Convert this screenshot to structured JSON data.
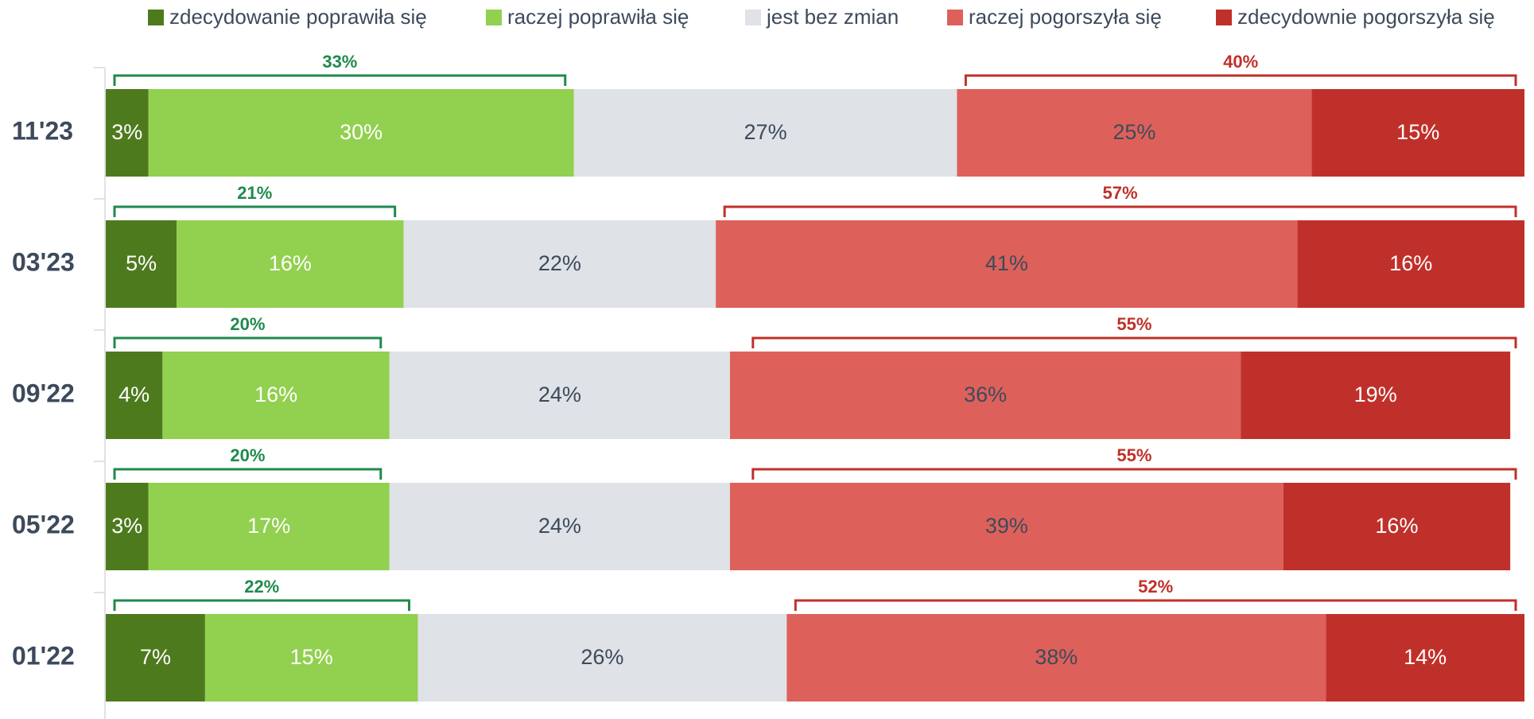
{
  "chart_data": {
    "type": "stacked-bar-horizontal",
    "categories": [
      "11'23",
      "03'23",
      "09'22",
      "05'22",
      "01'22"
    ],
    "xlim": [
      0,
      100
    ],
    "legend": "top",
    "series": [
      {
        "name": "zdecydowanie poprawiła się",
        "color": "#4e7a1e",
        "label_color": "#ffffff",
        "values": [
          3,
          5,
          4,
          3,
          7
        ],
        "value_labels": [
          "3%",
          "5%",
          "4%",
          "3%",
          "7%"
        ]
      },
      {
        "name": "raczej poprawiła się",
        "color": "#92d050",
        "label_color": "#ffffff",
        "values": [
          30,
          16,
          16,
          17,
          15
        ],
        "value_labels": [
          "30%",
          "16%",
          "16%",
          "17%",
          "15%"
        ]
      },
      {
        "name": "jest bez zmian",
        "color": "#dfe2e6",
        "label_color": "#3d4a5c",
        "values": [
          27,
          22,
          24,
          24,
          26
        ],
        "value_labels": [
          "27%",
          "22%",
          "24%",
          "24%",
          "26%"
        ]
      },
      {
        "name": "raczej pogorszyła się",
        "color": "#dd615a",
        "label_color": "#3d4a5c",
        "values": [
          25,
          41,
          36,
          39,
          38
        ],
        "value_labels": [
          "25%",
          "41%",
          "36%",
          "39%",
          "38%"
        ]
      },
      {
        "name": "zdecydownie pogorszyła się",
        "color": "#c0302a",
        "label_color": "#ffffff",
        "values": [
          15,
          16,
          19,
          16,
          14
        ],
        "value_labels": [
          "15%",
          "16%",
          "19%",
          "16%",
          "14%"
        ]
      }
    ],
    "positive_totals": {
      "color": "#1f8a4c",
      "values": [
        33,
        21,
        20,
        20,
        22
      ],
      "value_labels": [
        "33%",
        "21%",
        "20%",
        "20%",
        "22%"
      ]
    },
    "negative_totals": {
      "color": "#c0302a",
      "values": [
        40,
        57,
        55,
        55,
        52
      ],
      "value_labels": [
        "40%",
        "57%",
        "55%",
        "55%",
        "52%"
      ]
    }
  }
}
